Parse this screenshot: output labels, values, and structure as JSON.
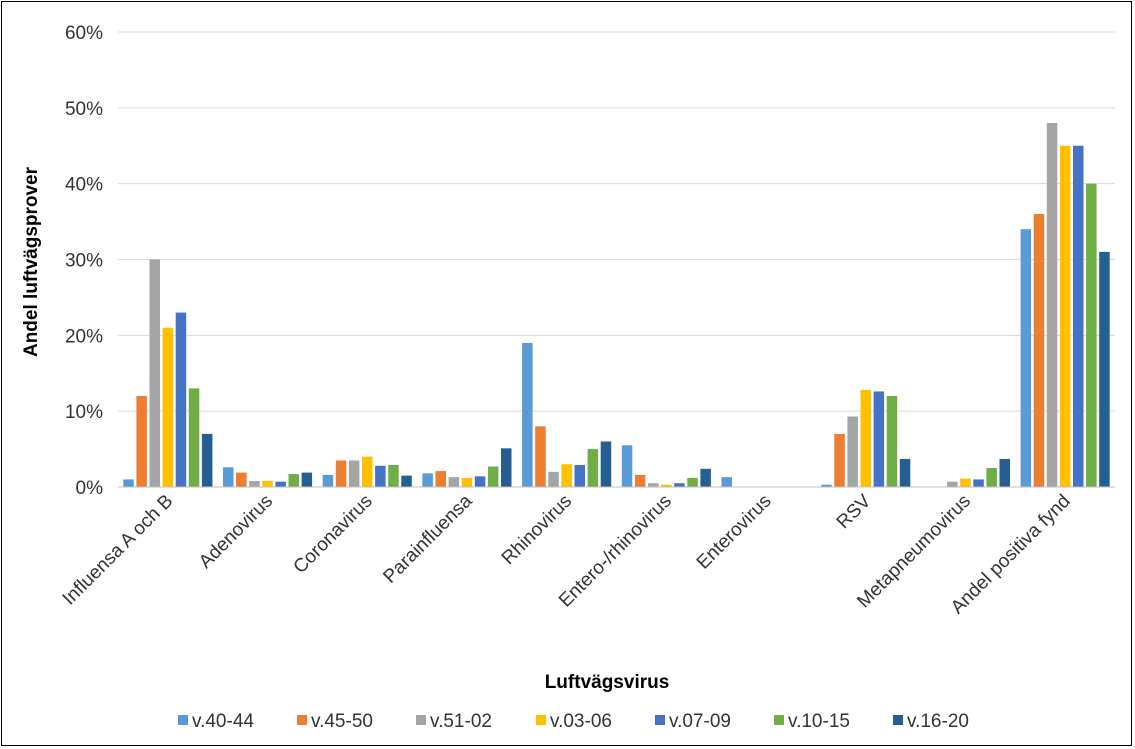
{
  "chart_data": {
    "type": "bar",
    "title": "",
    "xlabel": "Luftvägsvirus",
    "ylabel": "Andel luftvägsprover",
    "ylim": [
      0,
      60
    ],
    "yticks": [
      0,
      10,
      20,
      30,
      40,
      50,
      60
    ],
    "ytick_labels": [
      "0%",
      "10%",
      "20%",
      "30%",
      "40%",
      "50%",
      "60%"
    ],
    "grid": true,
    "legend_position": "bottom",
    "categories": [
      "Influensa A och B",
      "Adenovirus",
      "Coronavirus",
      "Parainfluensa",
      "Rhinovirus",
      "Entero-/rhinovirus",
      "Enterovirus",
      "RSV",
      "Metapneumovirus",
      "Andel positiva fynd"
    ],
    "series": [
      {
        "name": "v.40-44",
        "color": "#5B9BD5",
        "values": [
          1.0,
          2.6,
          1.6,
          1.8,
          19.0,
          5.5,
          1.3,
          0.3,
          0,
          34
        ]
      },
      {
        "name": "v.45-50",
        "color": "#ED7D31",
        "values": [
          12.0,
          1.9,
          3.5,
          2.1,
          8.0,
          1.6,
          0,
          7.0,
          0,
          36
        ]
      },
      {
        "name": "v.51-02",
        "color": "#A5A5A5",
        "values": [
          30.0,
          0.8,
          3.5,
          1.3,
          2.0,
          0.5,
          0,
          9.3,
          0.7,
          48
        ]
      },
      {
        "name": "v.03-06",
        "color": "#FFC000",
        "values": [
          21.0,
          0.8,
          4.0,
          1.2,
          3.0,
          0.3,
          0,
          12.8,
          1.1,
          45
        ]
      },
      {
        "name": "v.07-09",
        "color": "#4472C4",
        "values": [
          23.0,
          0.7,
          2.8,
          1.4,
          2.9,
          0.5,
          0,
          12.6,
          1.0,
          45
        ]
      },
      {
        "name": "v.10-15",
        "color": "#70AD47",
        "values": [
          13.0,
          1.7,
          2.9,
          2.7,
          5.0,
          1.2,
          0,
          12.0,
          2.5,
          40
        ]
      },
      {
        "name": "v.16-20",
        "color": "#255E91",
        "values": [
          7.0,
          1.9,
          1.5,
          5.1,
          6.0,
          2.4,
          0,
          3.7,
          3.7,
          31
        ]
      }
    ]
  }
}
